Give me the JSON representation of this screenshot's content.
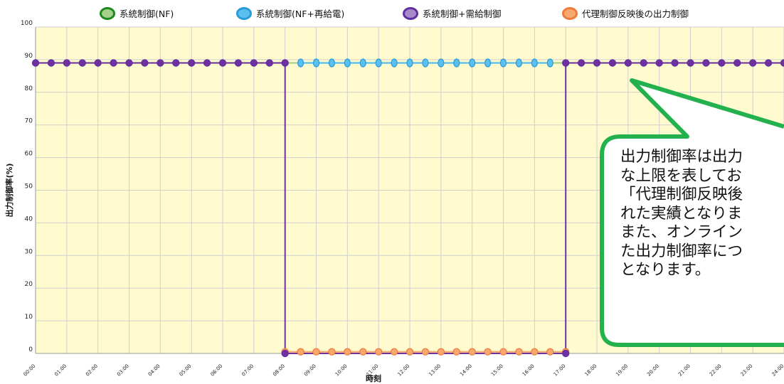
{
  "chart_data": {
    "type": "line",
    "title": "",
    "xlabel": "時刻",
    "ylabel": "出力制御率(%)",
    "ylim": [
      0,
      100
    ],
    "yticks": [
      0,
      10,
      20,
      30,
      40,
      50,
      60,
      70,
      80,
      90,
      100
    ],
    "xlim": [
      0,
      24
    ],
    "xtick_labels": [
      "00:00",
      "01:00",
      "02:00",
      "03:00",
      "04:00",
      "05:00",
      "06:00",
      "07:00",
      "08:00",
      "09:00",
      "10:00",
      "11:00",
      "12:00",
      "13:00",
      "14:00",
      "15:00",
      "16:00",
      "17:00",
      "18:00",
      "19:00",
      "20:00",
      "21:00",
      "22:00",
      "23:00",
      "24:00"
    ],
    "grid": true,
    "legend_position": "top",
    "background_color": "#fffbcf",
    "series": [
      {
        "name": "系統制御(NF)",
        "color": "#a8d08d",
        "border": "#1e8a1e",
        "x": [
          0,
          24
        ],
        "y": [
          89,
          89
        ],
        "show_points": false
      },
      {
        "name": "系統制御(NF+再給電)",
        "color": "#5bc0f0",
        "border": "#2a9ad8",
        "x": [
          8.5,
          9,
          9.5,
          10,
          10.5,
          11,
          11.5,
          12,
          12.5,
          13,
          13.5,
          14,
          14.5,
          15,
          15.5,
          16,
          16.5
        ],
        "y": [
          89,
          89,
          89,
          89,
          89,
          89,
          89,
          89,
          89,
          89,
          89,
          89,
          89,
          89,
          89,
          89,
          89
        ],
        "show_points": true
      },
      {
        "name": "系統制御+需給制御",
        "color": "#7030a0",
        "border": "#6030a0",
        "x": [
          0,
          0.5,
          1,
          1.5,
          2,
          2.5,
          3,
          3.5,
          4,
          4.5,
          5,
          5.5,
          6,
          6.5,
          7,
          7.5,
          8,
          8,
          17,
          17,
          17.5,
          18,
          18.5,
          19,
          19.5,
          20,
          20.5,
          21,
          21.5,
          22,
          22.5,
          23,
          23.5,
          24
        ],
        "y": [
          89,
          89,
          89,
          89,
          89,
          89,
          89,
          89,
          89,
          89,
          89,
          89,
          89,
          89,
          89,
          89,
          89,
          0,
          0,
          89,
          89,
          89,
          89,
          89,
          89,
          89,
          89,
          89,
          89,
          89,
          89,
          89,
          89,
          89
        ],
        "show_points": true
      },
      {
        "name": "代理制御反映後の出力制御",
        "color": "#f5a96f",
        "border": "#f07a3a",
        "x": [
          8,
          8.5,
          9,
          9.5,
          10,
          10.5,
          11,
          11.5,
          12,
          12.5,
          13,
          13.5,
          14,
          14.5,
          15,
          15.5,
          16,
          16.5,
          17
        ],
        "y": [
          0.5,
          0.5,
          0.5,
          0.5,
          0.5,
          0.5,
          0.5,
          0.5,
          0.5,
          0.5,
          0.5,
          0.5,
          0.5,
          0.5,
          0.5,
          0.5,
          0.5,
          0.5,
          0.5
        ],
        "show_points": true
      }
    ],
    "annotations": [
      {
        "type": "callout",
        "text": "出力制御率は出力\nな上限を表してお\n「代理制御反映後\nれた実績となりま\nまた、オンライン\nた出力制御率につ\nとなります。",
        "border_color": "#22b14c",
        "fill_color": "#ffffff"
      }
    ]
  }
}
